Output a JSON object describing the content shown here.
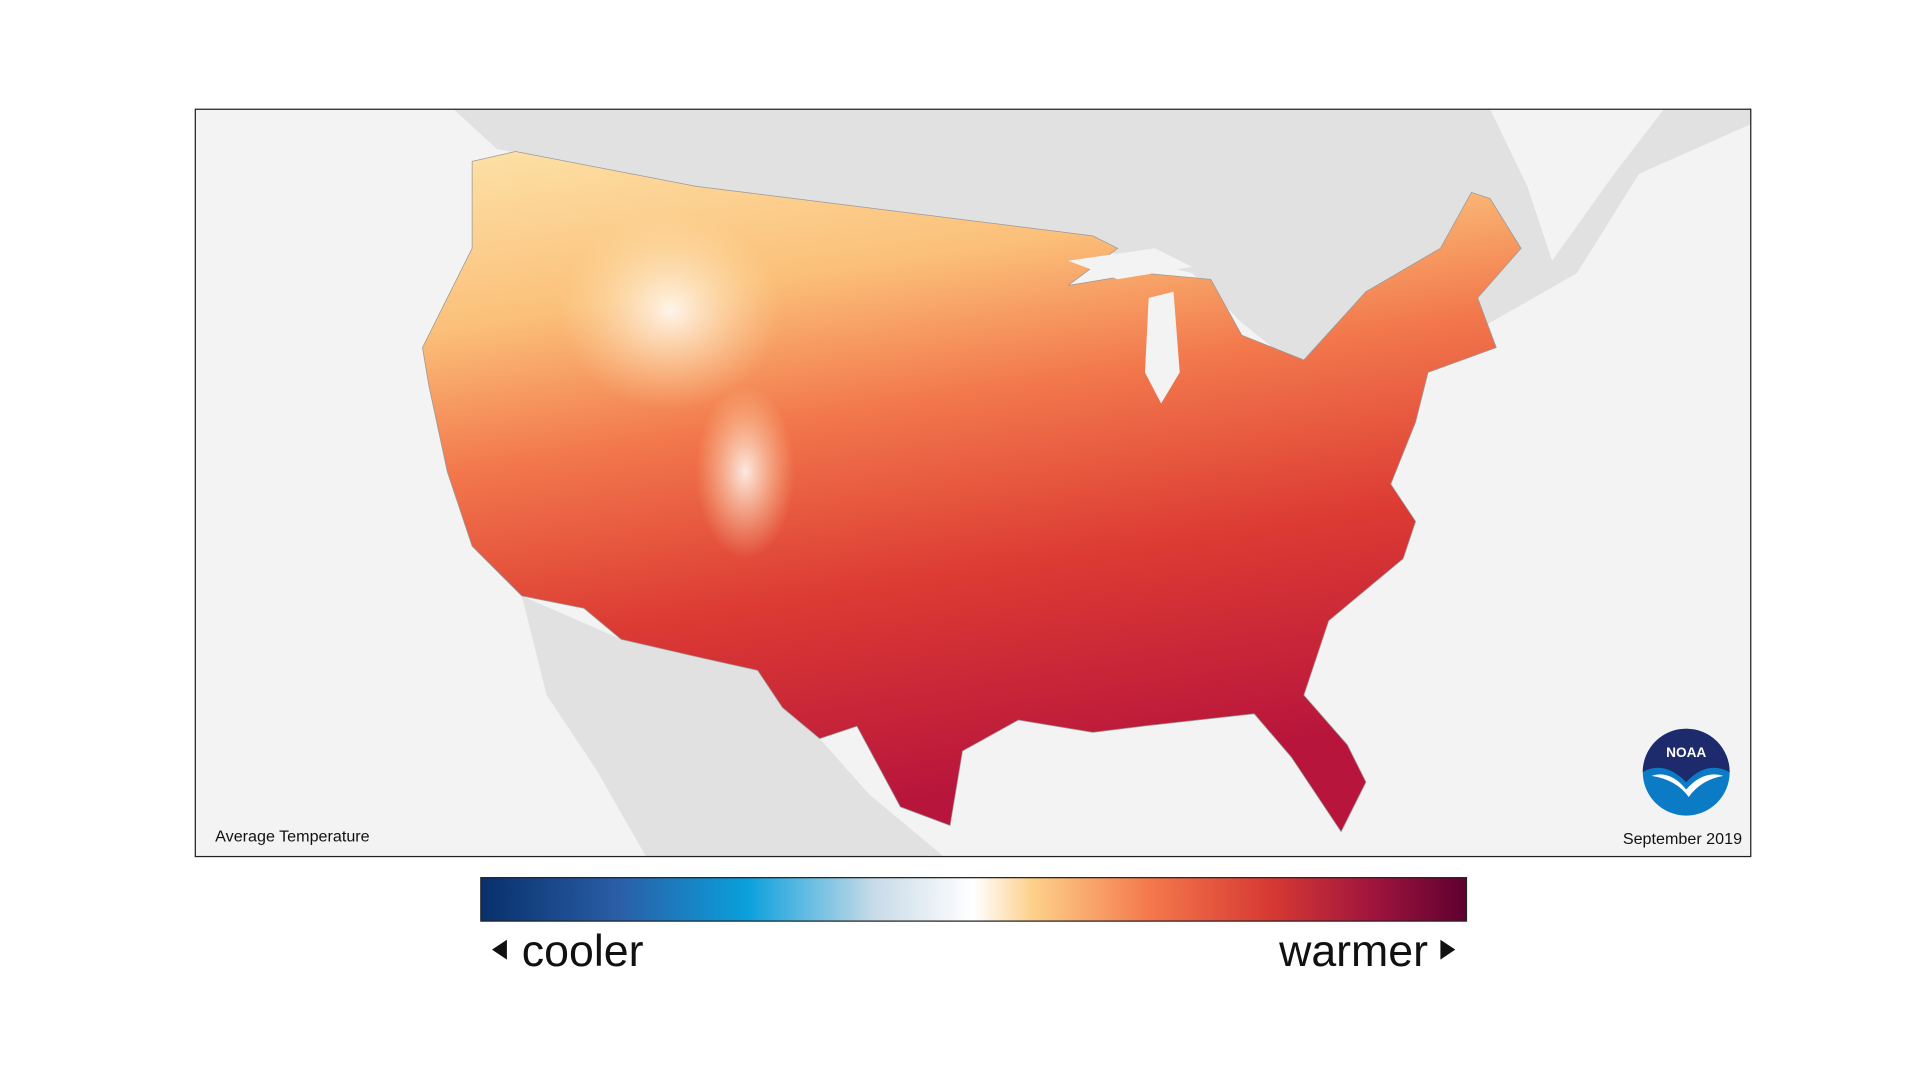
{
  "map": {
    "title": "Average Temperature",
    "date": "September 2019"
  },
  "legend": {
    "low_label": "cooler",
    "high_label": "warmer"
  },
  "logo": {
    "text": "NOAA"
  }
}
